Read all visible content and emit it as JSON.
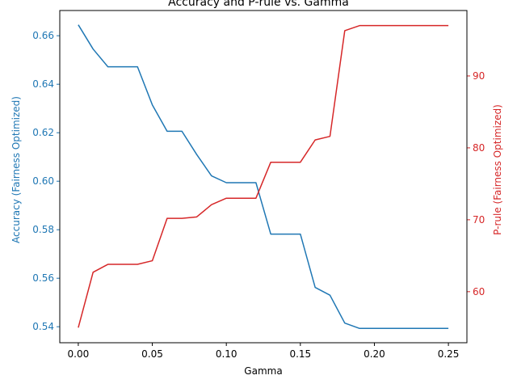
{
  "chart_data": {
    "type": "line",
    "title": "Accuracy and P-rule vs. Gamma",
    "xlabel": "Gamma",
    "xlim": [
      -0.0125,
      0.2625
    ],
    "xticks": [
      0.0,
      0.05,
      0.1,
      0.15,
      0.2,
      0.25
    ],
    "xtick_labels": [
      "0.00",
      "0.05",
      "0.10",
      "0.15",
      "0.20",
      "0.25"
    ],
    "x": [
      0.0,
      0.01,
      0.02,
      0.03,
      0.04,
      0.05,
      0.06,
      0.07,
      0.08,
      0.09,
      0.1,
      0.11,
      0.12,
      0.13,
      0.14,
      0.15,
      0.16,
      0.17,
      0.18,
      0.19,
      0.2,
      0.21,
      0.22,
      0.23,
      0.24,
      0.25
    ],
    "grid": false,
    "left_axis": {
      "label": "Accuracy (Fairness Optimized)",
      "color": "#1f77b4",
      "ylim": [
        0.5334,
        0.6704
      ],
      "ticks": [
        0.54,
        0.56,
        0.58,
        0.6,
        0.62,
        0.64,
        0.66
      ],
      "tick_labels": [
        "0.54",
        "0.56",
        "0.58",
        "0.60",
        "0.62",
        "0.64",
        "0.66"
      ],
      "values": [
        0.6645,
        0.6545,
        0.6472,
        0.6472,
        0.6472,
        0.6315,
        0.6206,
        0.6206,
        0.611,
        0.6022,
        0.5994,
        0.5994,
        0.5994,
        0.5782,
        0.5782,
        0.5782,
        0.5562,
        0.553,
        0.5415,
        0.5393,
        0.5393,
        0.5393,
        0.5393,
        0.5393,
        0.5393,
        0.5393
      ]
    },
    "right_axis": {
      "label": "P-rule (Fairness Optimized)",
      "color": "#d62728",
      "ylim": [
        52.9,
        99.1
      ],
      "ticks": [
        60,
        70,
        80,
        90
      ],
      "tick_labels": [
        "60",
        "70",
        "80",
        "90"
      ],
      "values": [
        55.0,
        62.7,
        63.8,
        63.8,
        63.8,
        64.3,
        70.2,
        70.2,
        70.4,
        72.1,
        73.0,
        73.0,
        73.0,
        78.0,
        78.0,
        78.0,
        81.1,
        81.6,
        96.3,
        97.0,
        97.0,
        97.0,
        97.0,
        97.0,
        97.0,
        97.0
      ]
    }
  }
}
